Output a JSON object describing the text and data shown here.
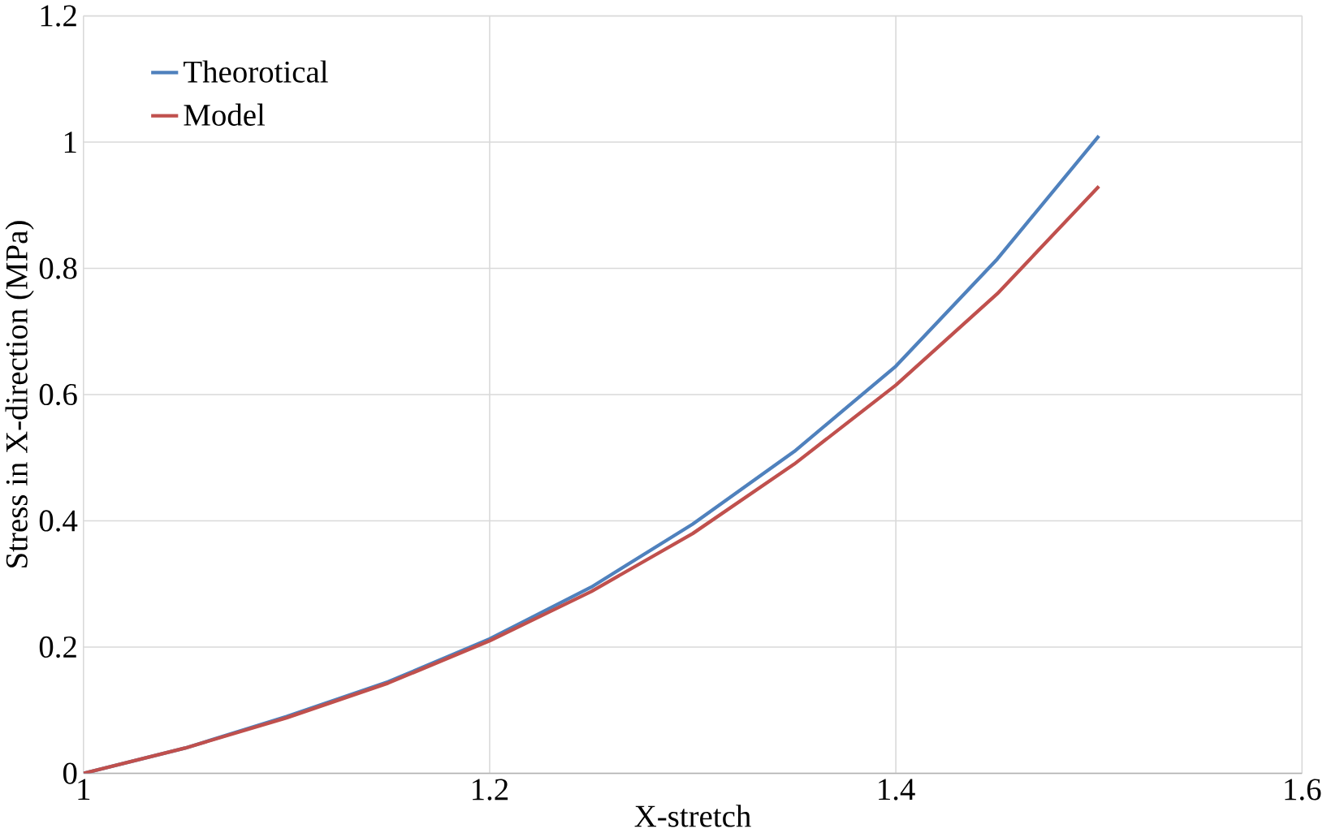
{
  "chart_data": {
    "type": "line",
    "xlabel": "X-stretch",
    "ylabel": "Stress in X-direction (MPa)",
    "xlim": [
      1,
      1.6
    ],
    "xticks": [
      1,
      1.2,
      1.4,
      1.6
    ],
    "ylim": [
      0,
      1.2
    ],
    "yticks": [
      0,
      0.2,
      0.4,
      0.6,
      0.8,
      1,
      1.2
    ],
    "grid": true,
    "legend": "top left",
    "marker": "none",
    "line_style": "solid",
    "series": [
      {
        "name": "Theorotical",
        "color": "#4f81bd",
        "x": [
          1,
          1.05,
          1.1,
          1.15,
          1.2,
          1.25,
          1.3,
          1.35,
          1.4,
          1.45,
          1.5
        ],
        "values": [
          0,
          0.04,
          0.09,
          0.145,
          0.213,
          0.295,
          0.395,
          0.51,
          0.645,
          0.815,
          1.01
        ]
      },
      {
        "name": "Model",
        "color": "#c0504d",
        "x": [
          1,
          1.05,
          1.1,
          1.15,
          1.2,
          1.25,
          1.3,
          1.35,
          1.4,
          1.45,
          1.5
        ],
        "values": [
          0,
          0.04,
          0.088,
          0.143,
          0.21,
          0.288,
          0.38,
          0.49,
          0.615,
          0.76,
          0.93
        ]
      }
    ]
  }
}
